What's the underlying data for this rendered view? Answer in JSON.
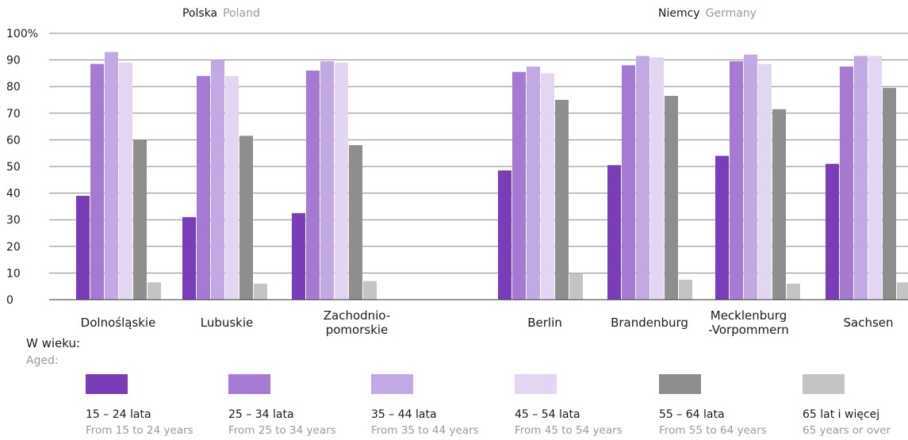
{
  "colors": {
    "grid": "#8a8a8a",
    "axis": "#333333",
    "series": [
      "#7a3db8",
      "#a67ad2",
      "#c3a9e3",
      "#e3d6f3",
      "#8e8e8e",
      "#c4c4c4"
    ]
  },
  "groups": [
    {
      "label": "Polska",
      "sub": "Poland"
    },
    {
      "label": "Niemcy",
      "sub": "Germany"
    }
  ],
  "legend": {
    "title": "W wieku:",
    "subtitle": "Aged:"
  },
  "chart_data": {
    "type": "bar",
    "ylim": [
      0,
      100
    ],
    "yticks": [
      "0",
      "10",
      "20",
      "30",
      "40",
      "50",
      "60",
      "70",
      "80",
      "90",
      "100%"
    ],
    "grid": true,
    "legend_position": "bottom",
    "categories": [
      {
        "lines": [
          "Dolnośląskie"
        ],
        "group": 0
      },
      {
        "lines": [
          "Lubuskie"
        ],
        "group": 0
      },
      {
        "lines": [
          "Zachodnio-",
          "pomorskie"
        ],
        "group": 0
      },
      {
        "lines": [
          "Berlin"
        ],
        "group": 1
      },
      {
        "lines": [
          "Brandenburg"
        ],
        "group": 1
      },
      {
        "lines": [
          "Mecklenburg",
          "-Vorpommern"
        ],
        "group": 1
      },
      {
        "lines": [
          "Sachsen"
        ],
        "group": 1
      }
    ],
    "series": [
      {
        "name": "15 – 24 lata",
        "sub": "From 15 to 24 years",
        "values": [
          39,
          31,
          32.5,
          48.5,
          50.5,
          54,
          51
        ]
      },
      {
        "name": "25 – 34 lata",
        "sub": "From 25 to 34 years",
        "values": [
          88.5,
          84,
          86,
          85.5,
          88,
          89.5,
          87.5
        ]
      },
      {
        "name": "35 – 44 lata",
        "sub": "From 35 to 44 years",
        "values": [
          93,
          90,
          89.5,
          87.5,
          91.5,
          92,
          91.5
        ]
      },
      {
        "name": "45 – 54 lata",
        "sub": "From 45 to 54 years",
        "values": [
          89,
          84,
          89,
          85,
          91,
          88.5,
          91.5
        ]
      },
      {
        "name": "55 – 64 lata",
        "sub": "From 55 to 64 years",
        "values": [
          60,
          61.5,
          58,
          75,
          76.5,
          71.5,
          79.5
        ]
      },
      {
        "name": "65 lat i więcej",
        "sub": "65 years or over",
        "values": [
          6.5,
          6,
          7,
          10,
          7.5,
          6,
          6.5
        ]
      }
    ]
  }
}
